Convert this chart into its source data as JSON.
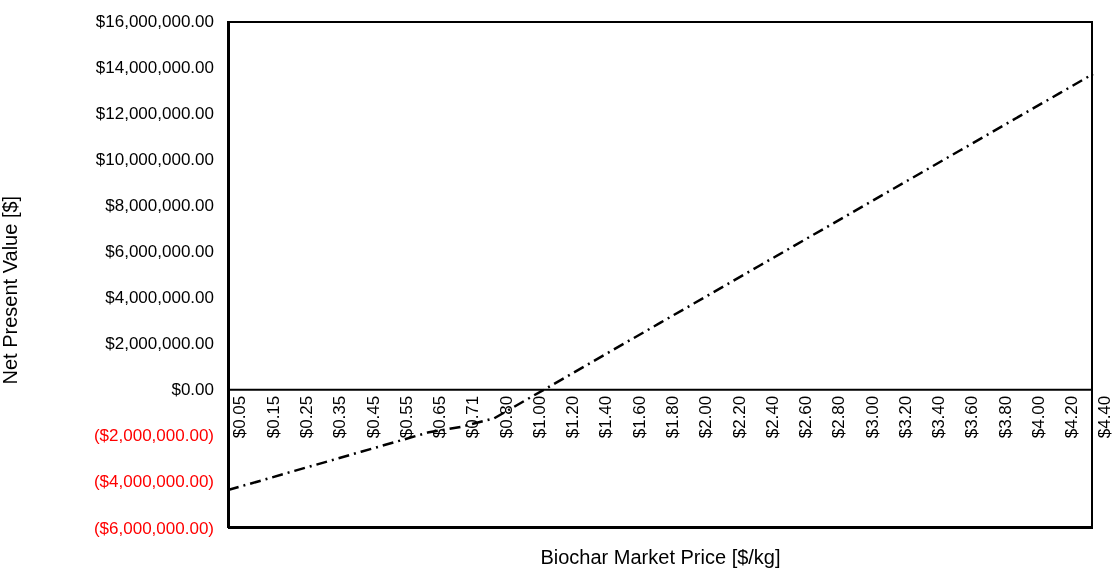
{
  "chart_data": {
    "type": "line",
    "xlabel": "Biochar Market Price [$/kg]",
    "ylabel": "Net Present Value [$]",
    "categories": [
      "$0.05",
      "$0.15",
      "$0.25",
      "$0.35",
      "$0.45",
      "$0.55",
      "$0.65",
      "$0.71",
      "$0.80",
      "$1.00",
      "$1.20",
      "$1.40",
      "$1.60",
      "$1.80",
      "$2.00",
      "$2.20",
      "$2.40",
      "$2.60",
      "$2.80",
      "$3.00",
      "$3.20",
      "$3.40",
      "$3.60",
      "$3.80",
      "$4.00",
      "$4.20",
      "$4.40"
    ],
    "series": [
      {
        "color": "#000000",
        "values": [
          -4350000,
          -3940000,
          -3520000,
          -3110000,
          -2690000,
          -2280000,
          -1860000,
          -1610000,
          -1240000,
          -410000,
          420000,
          1250000,
          2080000,
          2910000,
          3740000,
          4570000,
          5400000,
          6230000,
          7060000,
          7890000,
          8720000,
          9550000,
          10380000,
          11210000,
          12040000,
          12870000,
          13700000
        ]
      }
    ],
    "ylim": [
      -6000000,
      16000000
    ],
    "yticks": [
      {
        "value": 16000000,
        "label": "$16,000,000.00"
      },
      {
        "value": 14000000,
        "label": "$14,000,000.00"
      },
      {
        "value": 12000000,
        "label": "$12,000,000.00"
      },
      {
        "value": 10000000,
        "label": "$10,000,000.00"
      },
      {
        "value": 8000000,
        "label": "$8,000,000.00"
      },
      {
        "value": 6000000,
        "label": "$6,000,000.00"
      },
      {
        "value": 4000000,
        "label": "$4,000,000.00"
      },
      {
        "value": 2000000,
        "label": "$2,000,000.00"
      },
      {
        "value": 0,
        "label": "$0.00"
      },
      {
        "value": -2000000,
        "label": "($2,000,000.00)"
      },
      {
        "value": -4000000,
        "label": "($4,000,000.00)"
      },
      {
        "value": -6000000,
        "label": "($6,000,000.00)"
      }
    ],
    "grid": false,
    "legend": false,
    "marker": "none",
    "line_style": "dashed"
  }
}
